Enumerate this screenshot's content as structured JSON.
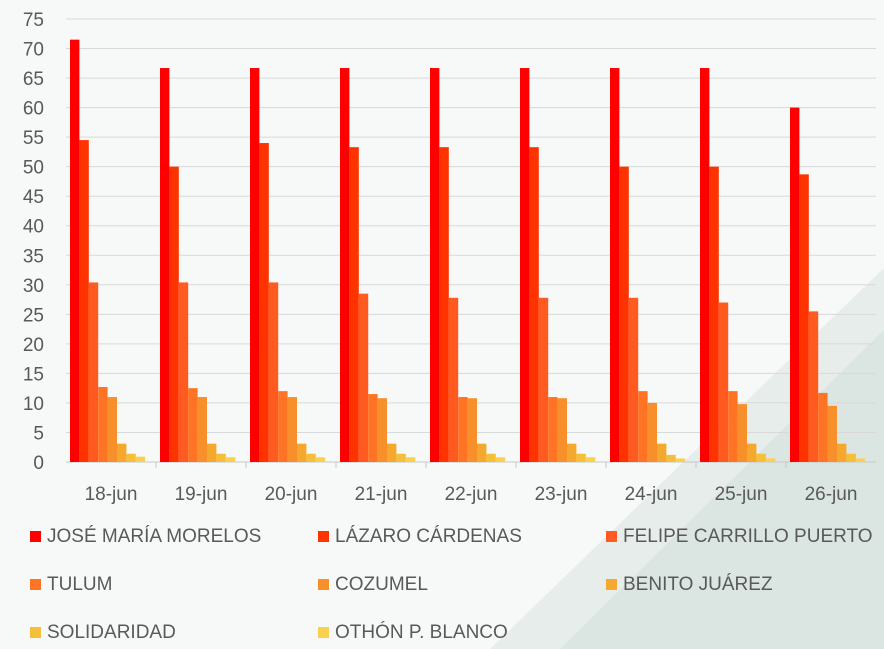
{
  "chart_data": {
    "type": "bar",
    "title": "",
    "xlabel": "",
    "ylabel": "",
    "ylim": [
      0,
      75
    ],
    "yticks": [
      "0",
      "5",
      "10",
      "15",
      "20",
      "25",
      "30",
      "35",
      "40",
      "45",
      "50",
      "55",
      "60",
      "65",
      "70",
      "75"
    ],
    "grid": true,
    "legend_position": "bottom",
    "categories": [
      "18-jun",
      "19-jun",
      "20-jun",
      "21-jun",
      "22-jun",
      "23-jun",
      "24-jun",
      "25-jun",
      "26-jun"
    ],
    "series": [
      {
        "name": "JOSÉ MARÍA MORELOS",
        "color": "#ff0000",
        "values": [
          71.5,
          66.7,
          66.7,
          66.7,
          66.7,
          66.7,
          66.7,
          66.7,
          60.0
        ]
      },
      {
        "name": "LÁZARO CÁRDENAS",
        "color": "#ff3300",
        "values": [
          54.5,
          50.0,
          54.0,
          53.3,
          53.3,
          53.3,
          50.0,
          50.0,
          48.7
        ]
      },
      {
        "name": "FELIPE CARRILLO PUERTO",
        "color": "#ff5a1f",
        "values": [
          30.4,
          30.4,
          30.4,
          28.5,
          27.8,
          27.8,
          27.8,
          27.0,
          25.5
        ]
      },
      {
        "name": "TULUM",
        "color": "#ff7424",
        "values": [
          12.7,
          12.5,
          12.0,
          11.5,
          11.0,
          11.0,
          12.0,
          12.0,
          11.7
        ]
      },
      {
        "name": "COZUMEL",
        "color": "#f7902a",
        "values": [
          11.0,
          11.0,
          11.0,
          10.8,
          10.8,
          10.8,
          10.0,
          9.8,
          9.5
        ]
      },
      {
        "name": "BENITO JUÁREZ",
        "color": "#f4a82e",
        "values": [
          3.1,
          3.1,
          3.1,
          3.1,
          3.1,
          3.1,
          3.1,
          3.1,
          3.1
        ]
      },
      {
        "name": "SOLIDARIDAD",
        "color": "#f6bf3a",
        "values": [
          1.4,
          1.4,
          1.4,
          1.4,
          1.4,
          1.4,
          1.2,
          1.4,
          1.4
        ]
      },
      {
        "name": "OTHÓN P. BLANCO",
        "color": "#fad04f",
        "values": [
          0.9,
          0.8,
          0.8,
          0.8,
          0.8,
          0.8,
          0.6,
          0.6,
          0.6
        ]
      }
    ]
  }
}
